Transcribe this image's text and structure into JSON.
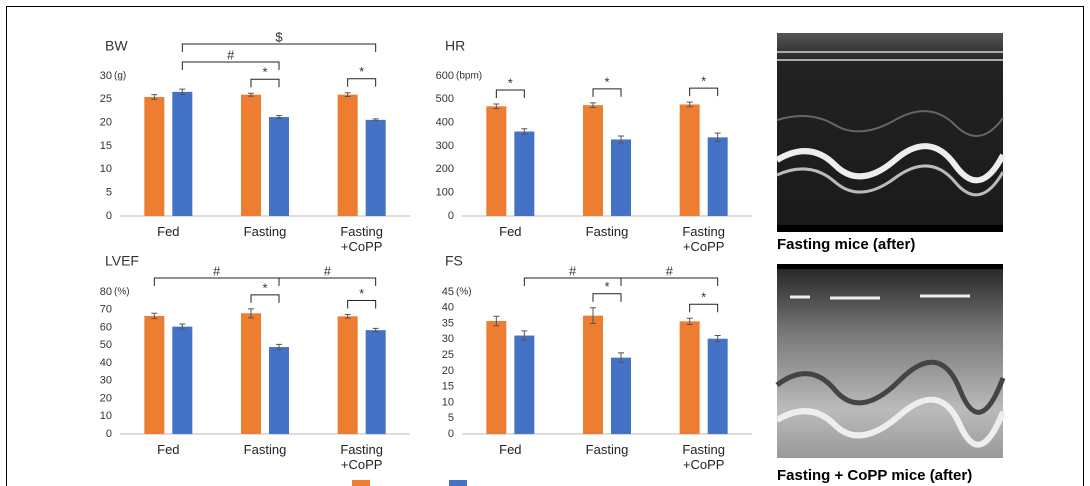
{
  "chart_data": [
    {
      "type": "bar",
      "title": "BW",
      "unit": "(g)",
      "categories": [
        "Fed",
        "Fasting",
        "Fasting +CoPP"
      ],
      "series": [
        {
          "color": "#ed7d31",
          "values": [
            25.5,
            26,
            26
          ],
          "errors": [
            0.5,
            0.3,
            0.4
          ]
        },
        {
          "color": "#4472c4",
          "values": [
            26.6,
            21.2,
            20.6
          ],
          "errors": [
            0.6,
            0.3,
            0.2
          ]
        }
      ],
      "ylim": [
        0,
        30
      ],
      "yticks": [
        0,
        5,
        10,
        15,
        20,
        25,
        30
      ],
      "brackets": [
        {
          "label": "*",
          "from": [
            1,
            0
          ],
          "to": [
            1,
            1
          ]
        },
        {
          "label": "*",
          "from": [
            2,
            0
          ],
          "to": [
            2,
            1
          ]
        },
        {
          "label": "#",
          "from": [
            0,
            1
          ],
          "to": [
            1,
            1
          ]
        },
        {
          "label": "$",
          "from": [
            0,
            1
          ],
          "to": [
            2,
            1
          ]
        }
      ]
    },
    {
      "type": "bar",
      "title": "HR",
      "unit": "(bpm)",
      "categories": [
        "Fed",
        "Fasting",
        "Fasting +CoPP"
      ],
      "series": [
        {
          "color": "#ed7d31",
          "values": [
            470,
            475,
            478
          ],
          "errors": [
            10,
            10,
            10
          ]
        },
        {
          "color": "#4472c4",
          "values": [
            362,
            328,
            337
          ],
          "errors": [
            12,
            15,
            18
          ]
        }
      ],
      "ylim": [
        0,
        600
      ],
      "yticks": [
        0,
        100,
        200,
        300,
        400,
        500,
        600
      ],
      "brackets": [
        {
          "label": "*",
          "from": [
            0,
            0
          ],
          "to": [
            0,
            1
          ]
        },
        {
          "label": "*",
          "from": [
            1,
            0
          ],
          "to": [
            1,
            1
          ]
        },
        {
          "label": "*",
          "from": [
            2,
            0
          ],
          "to": [
            2,
            1
          ]
        }
      ]
    },
    {
      "type": "bar",
      "title": "LVEF",
      "unit": "(%)",
      "categories": [
        "Fed",
        "Fasting",
        "Fasting +CoPP"
      ],
      "series": [
        {
          "color": "#ed7d31",
          "values": [
            66.5,
            68,
            66.3
          ],
          "errors": [
            1.5,
            2.5,
            1
          ]
        },
        {
          "color": "#4472c4",
          "values": [
            60.5,
            49,
            58.5
          ],
          "errors": [
            1.5,
            1.5,
            1
          ]
        }
      ],
      "ylim": [
        0,
        80
      ],
      "yticks": [
        0,
        10,
        20,
        30,
        40,
        50,
        60,
        70,
        80
      ],
      "brackets": [
        {
          "label": "*",
          "from": [
            1,
            0
          ],
          "to": [
            1,
            1
          ]
        },
        {
          "label": "*",
          "from": [
            2,
            0
          ],
          "to": [
            2,
            1
          ]
        },
        {
          "label": "#",
          "from": [
            0,
            0
          ],
          "to": [
            1,
            1
          ]
        },
        {
          "label": "#",
          "from": [
            1,
            1
          ],
          "to": [
            2,
            1
          ]
        }
      ]
    },
    {
      "type": "bar",
      "title": "FS",
      "unit": "(%)",
      "categories": [
        "Fed",
        "Fasting",
        "Fasting +CoPP"
      ],
      "series": [
        {
          "color": "#ed7d31",
          "values": [
            35.8,
            37.5,
            35.7
          ],
          "errors": [
            1.5,
            2.5,
            1
          ]
        },
        {
          "color": "#4472c4",
          "values": [
            31.2,
            24.2,
            30.2
          ],
          "errors": [
            1.5,
            1.5,
            1
          ]
        }
      ],
      "ylim": [
        0,
        45
      ],
      "yticks": [
        0,
        5,
        10,
        15,
        20,
        25,
        30,
        35,
        40,
        45
      ],
      "brackets": [
        {
          "label": "*",
          "from": [
            1,
            0
          ],
          "to": [
            1,
            1
          ]
        },
        {
          "label": "*",
          "from": [
            2,
            0
          ],
          "to": [
            2,
            1
          ]
        },
        {
          "label": "#",
          "from": [
            0,
            1
          ],
          "to": [
            1,
            1
          ]
        },
        {
          "label": "#",
          "from": [
            1,
            1
          ],
          "to": [
            2,
            1
          ]
        }
      ]
    }
  ],
  "images": [
    {
      "caption": "Fasting mice (after)"
    },
    {
      "caption": "Fasting + CoPP mice (after)"
    }
  ]
}
